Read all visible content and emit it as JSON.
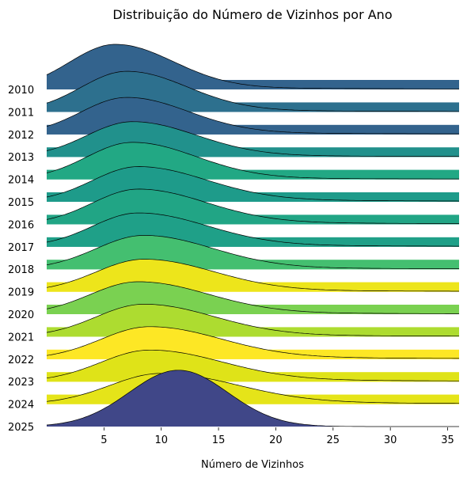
{
  "chart_data": {
    "type": "area",
    "subtype": "ridgeline",
    "title": "Distribuição do Número de Vizinhos por Ano",
    "xlabel": "Número de Vizinhos",
    "ylabel": "",
    "xlim": [
      0,
      36
    ],
    "xticks": [
      5,
      10,
      15,
      20,
      25,
      30,
      35
    ],
    "grid": false,
    "legend": "none",
    "series": [
      {
        "name": "2010",
        "color": "#33638d",
        "peak_x": 6.0,
        "peak_height": 1.0,
        "width_left": 4.0,
        "width_right": 5.0,
        "tail": 0.06
      },
      {
        "name": "2011",
        "color": "#2d708e",
        "peak_x": 7.0,
        "peak_height": 0.9,
        "width_left": 4.0,
        "width_right": 5.2,
        "tail": 0.06
      },
      {
        "name": "2012",
        "color": "#33638d",
        "peak_x": 7.0,
        "peak_height": 0.82,
        "width_left": 4.0,
        "width_right": 5.3,
        "tail": 0.07
      },
      {
        "name": "2013",
        "color": "#21918c",
        "peak_x": 7.5,
        "peak_height": 0.78,
        "width_left": 4.0,
        "width_right": 5.5,
        "tail": 0.06
      },
      {
        "name": "2014",
        "color": "#22a884",
        "peak_x": 7.5,
        "peak_height": 0.82,
        "width_left": 4.0,
        "width_right": 5.5,
        "tail": 0.05
      },
      {
        "name": "2015",
        "color": "#1e9b8a",
        "peak_x": 8.0,
        "peak_height": 0.78,
        "width_left": 4.0,
        "width_right": 5.8,
        "tail": 0.1
      },
      {
        "name": "2016",
        "color": "#21a585",
        "peak_x": 8.0,
        "peak_height": 0.78,
        "width_left": 4.0,
        "width_right": 5.8,
        "tail": 0.09
      },
      {
        "name": "2017",
        "color": "#1fa088",
        "peak_x": 8.0,
        "peak_height": 0.75,
        "width_left": 4.0,
        "width_right": 5.9,
        "tail": 0.08
      },
      {
        "name": "2018",
        "color": "#44bf70",
        "peak_x": 8.5,
        "peak_height": 0.75,
        "width_left": 4.2,
        "width_right": 5.9,
        "tail": 0.07
      },
      {
        "name": "2019",
        "color": "#ede51b",
        "peak_x": 8.5,
        "peak_height": 0.72,
        "width_left": 4.2,
        "width_right": 6.0,
        "tail": 0.07
      },
      {
        "name": "2020",
        "color": "#7ad151",
        "peak_x": 8.0,
        "peak_height": 0.72,
        "width_left": 4.2,
        "width_right": 6.0,
        "tail": 0.07
      },
      {
        "name": "2021",
        "color": "#addc30",
        "peak_x": 8.5,
        "peak_height": 0.72,
        "width_left": 4.2,
        "width_right": 6.0,
        "tail": 0.08
      },
      {
        "name": "2022",
        "color": "#fde725",
        "peak_x": 9.0,
        "peak_height": 0.72,
        "width_left": 4.3,
        "width_right": 6.1,
        "tail": 0.1
      },
      {
        "name": "2023",
        "color": "#dfe318",
        "peak_x": 9.0,
        "peak_height": 0.7,
        "width_left": 4.3,
        "width_right": 6.2,
        "tail": 0.1
      },
      {
        "name": "2024",
        "color": "#e5e419",
        "peak_x": 10.0,
        "peak_height": 0.68,
        "width_left": 4.5,
        "width_right": 6.5,
        "tail": 0.1
      },
      {
        "name": "2025",
        "color": "#404788",
        "peak_x": 11.5,
        "peak_height": 1.25,
        "width_left": 4.3,
        "width_right": 4.3,
        "tail": 0.0
      }
    ]
  }
}
